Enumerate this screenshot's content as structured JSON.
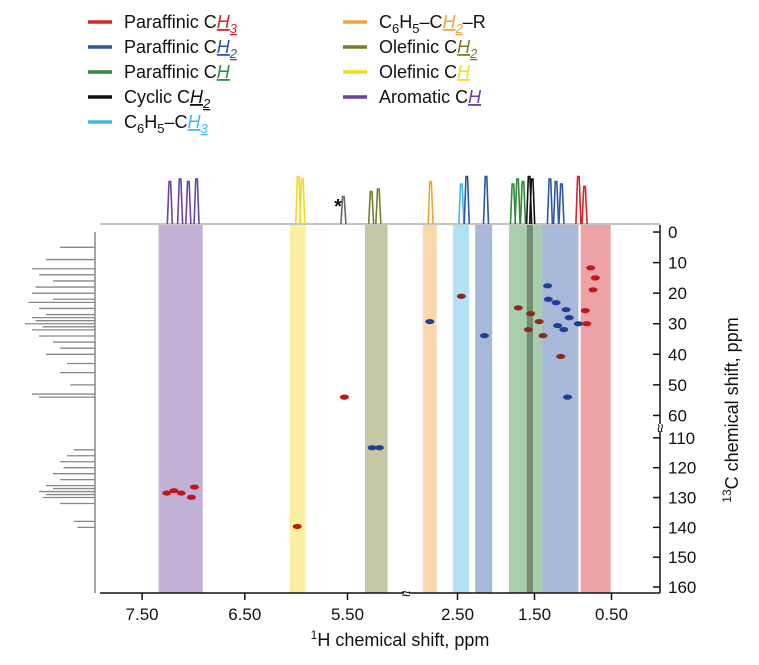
{
  "chart_data": {
    "type": "scatter",
    "x_label": "1H chemical shift, ppm",
    "y_label": "13C chemical shift, ppm",
    "annotation": "*",
    "xlim": [
      [
        7.91,
        4.95
      ],
      [
        3.13,
        -0.13
      ]
    ],
    "ylim": [
      [
        -2.3,
        62.8
      ],
      [
        107.7,
        162
      ]
    ],
    "xticks": [
      {
        "value": 7.5,
        "label": "7.50"
      },
      {
        "value": 6.5,
        "label": "6.50"
      },
      {
        "value": 5.5,
        "label": "5.50"
      },
      {
        "value": 2.5,
        "label": "2.50"
      },
      {
        "value": 1.5,
        "label": "1.50"
      },
      {
        "value": 0.5,
        "label": "0.50"
      }
    ],
    "yticks": [
      0,
      10,
      20,
      30,
      40,
      50,
      60,
      110,
      120,
      130,
      140,
      150,
      160
    ],
    "series": [
      {
        "name": "Paraffinic CH3",
        "color": "#d4232b",
        "bands": [
          [
            0.9,
            0.51
          ]
        ]
      },
      {
        "name": "Paraffinic CH2",
        "color": "#2d56a3",
        "bands": [
          [
            2.27,
            2.05
          ],
          [
            1.4,
            0.93
          ]
        ]
      },
      {
        "name": "Paraffinic CH",
        "color": "#2f8a3b",
        "bands": [
          [
            1.83,
            1.4
          ]
        ]
      },
      {
        "name": "Cyclic CH2",
        "color": "#111111",
        "bands": [
          [
            1.6,
            1.52
          ]
        ]
      },
      {
        "name": "C6H5–CH3",
        "color": "#45b8e8",
        "bands": [
          [
            2.56,
            2.35
          ]
        ]
      },
      {
        "name": "C6H5–CH2–R",
        "color": "#f2a33a",
        "bands": [
          [
            2.95,
            2.77
          ]
        ]
      },
      {
        "name": "Olefinic CH2",
        "color": "#7d7a2c",
        "bands": [
          [
            5.33,
            5.11
          ]
        ]
      },
      {
        "name": "Olefinic CH",
        "color": "#f5d91c",
        "bands": [
          [
            6.06,
            5.91
          ]
        ]
      },
      {
        "name": "Aromatic CH",
        "color": "#6a449c",
        "bands": [
          [
            7.34,
            6.91
          ]
        ]
      }
    ],
    "peaks": [
      {
        "color": "#c0161c",
        "x": [
          7.26,
          7.19,
          7.12,
          7.02,
          6.99,
          5.99,
          5.53,
          0.77,
          0.71,
          0.74,
          0.84,
          0.82
        ],
        "y": [
          128.5,
          127.7,
          128.5,
          129.9,
          126.5,
          139.7,
          54,
          11.7,
          15,
          18.9,
          25.7,
          30
        ]
      },
      {
        "color": "#8a2a1a",
        "x": [
          2.45,
          1.71,
          1.55,
          1.58,
          1.44,
          1.39,
          1.16
        ],
        "y": [
          21,
          24.8,
          26.7,
          31.9,
          29.3,
          33.9,
          40.7
        ]
      },
      {
        "color": "#1f3f95",
        "x": [
          5.26,
          5.19,
          2.86,
          2.15,
          1.33,
          1.32,
          1.22,
          1.09,
          1.05,
          1.2,
          1.12,
          1.07,
          0.93
        ],
        "y": [
          113.3,
          113.3,
          29.3,
          33.9,
          17.6,
          22,
          23.1,
          25.4,
          28,
          30.6,
          31.9,
          54,
          30
        ]
      }
    ],
    "top_projection": {
      "x": [
        7.23,
        7.13,
        7.05,
        6.97,
        5.98,
        5.94,
        5.54,
        5.27,
        5.2,
        2.85,
        2.45,
        2.38,
        2.13,
        1.78,
        1.72,
        1.65,
        1.57,
        1.53,
        1.3,
        1.22,
        1.15,
        0.93,
        0.85
      ],
      "height": [
        0.85,
        0.9,
        0.85,
        0.9,
        0.95,
        0.9,
        0.55,
        0.65,
        0.7,
        0.85,
        0.8,
        0.95,
        0.95,
        0.8,
        0.9,
        0.85,
        0.95,
        0.9,
        0.9,
        0.85,
        0.8,
        0.95,
        0.75
      ],
      "band": [
        8,
        8,
        8,
        8,
        7,
        7,
        null,
        6,
        6,
        5,
        4,
        1,
        1,
        2,
        2,
        2,
        3,
        3,
        1,
        1,
        1,
        0,
        0
      ]
    },
    "left_projection": {
      "y": [
        5,
        9,
        12,
        14,
        16,
        18,
        20,
        22,
        23,
        25,
        27,
        28,
        29,
        30,
        31,
        32,
        34,
        36,
        38,
        40,
        43,
        46,
        50,
        53,
        54,
        114,
        116,
        118,
        120,
        122,
        124,
        126,
        127,
        128,
        129,
        130,
        132,
        138,
        140
      ],
      "length": [
        0.5,
        0.7,
        0.9,
        0.8,
        0.6,
        0.85,
        0.9,
        0.6,
        0.95,
        0.8,
        0.7,
        0.9,
        0.85,
        1.0,
        0.75,
        0.9,
        0.8,
        0.6,
        0.5,
        0.7,
        0.4,
        0.5,
        0.35,
        0.9,
        0.8,
        0.3,
        0.4,
        0.5,
        0.45,
        0.6,
        0.5,
        0.7,
        0.6,
        0.8,
        0.7,
        0.75,
        0.5,
        0.3,
        0.25
      ]
    }
  }
}
